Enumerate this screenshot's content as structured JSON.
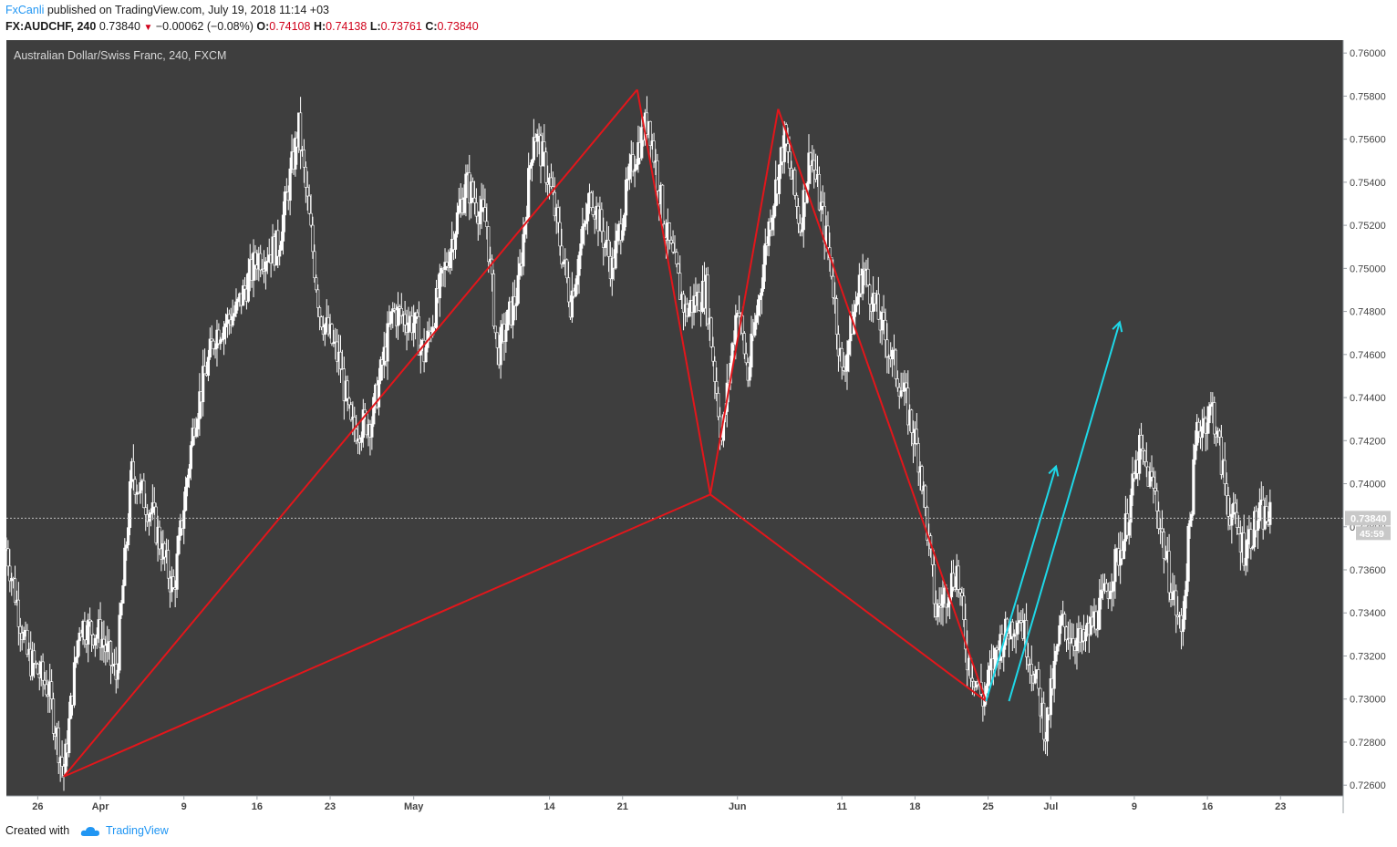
{
  "header": {
    "author": "FxCanli",
    "published": " published on TradingView.com, July 19, 2018 11:14 +03",
    "symbol": "FX:AUDCHF, 240",
    "last": "0.73840",
    "change": "−0.00062 (−0.08%)",
    "o_label": "O:",
    "o": "0.74108",
    "h_label": "H:",
    "h": "0.74138",
    "l_label": "L:",
    "l": "0.73761",
    "c_label": "C:",
    "c": "0.73840"
  },
  "footer": {
    "created_with": "Created with",
    "brand": "TradingView"
  },
  "colors": {
    "background": "#3e3e3e",
    "candle": "#ffffff",
    "pattern": "#e2161b",
    "arrows": "#1ed8e8",
    "price_tag": "#c8c8c8"
  },
  "chart_data": {
    "type": "candlestick",
    "title": "Australian Dollar/Swiss Franc, 240, FXCM",
    "y_ticks": [
      "0.76000",
      "0.75800",
      "0.75600",
      "0.75400",
      "0.75200",
      "0.75000",
      "0.74800",
      "0.74600",
      "0.74400",
      "0.74200",
      "0.74000",
      "0.73800",
      "0.73600",
      "0.73400",
      "0.73200",
      "0.73000",
      "0.72800",
      "0.72600"
    ],
    "ylim": [
      0.7255,
      0.7606
    ],
    "x_ticks": [
      {
        "label": "26",
        "day": 0
      },
      {
        "label": "Apr",
        "day": 6
      },
      {
        "label": "9",
        "day": 14
      },
      {
        "label": "16",
        "day": 21
      },
      {
        "label": "23",
        "day": 28
      },
      {
        "label": "May",
        "day": 36
      },
      {
        "label": "14",
        "day": 49
      },
      {
        "label": "21",
        "day": 56
      },
      {
        "label": "Jun",
        "day": 67
      },
      {
        "label": "11",
        "day": 77
      },
      {
        "label": "18",
        "day": 84
      },
      {
        "label": "25",
        "day": 91
      },
      {
        "label": "Jul",
        "day": 97
      },
      {
        "label": "9",
        "day": 105
      },
      {
        "label": "16",
        "day": 112
      },
      {
        "label": "23",
        "day": 119
      }
    ],
    "xlim_days": [
      -3,
      125
    ],
    "current_price": "0.73840",
    "current_price_value": 0.7384,
    "countdown": "45:59",
    "price_path": [
      [
        -3,
        0.737
      ],
      [
        -1,
        0.732
      ],
      [
        1,
        0.7305
      ],
      [
        2.5,
        0.7265
      ],
      [
        4,
        0.7335
      ],
      [
        6,
        0.733
      ],
      [
        7.5,
        0.731
      ],
      [
        9,
        0.7405
      ],
      [
        11,
        0.7385
      ],
      [
        13,
        0.735
      ],
      [
        15,
        0.743
      ],
      [
        17,
        0.747
      ],
      [
        19,
        0.748
      ],
      [
        21,
        0.7505
      ],
      [
        23,
        0.751
      ],
      [
        25,
        0.7565
      ],
      [
        27,
        0.748
      ],
      [
        29,
        0.7455
      ],
      [
        30,
        0.7425
      ],
      [
        32,
        0.743
      ],
      [
        34,
        0.748
      ],
      [
        36,
        0.7475
      ],
      [
        37,
        0.746
      ],
      [
        39,
        0.75
      ],
      [
        41,
        0.754
      ],
      [
        43,
        0.752
      ],
      [
        44,
        0.746
      ],
      [
        46,
        0.749
      ],
      [
        47.5,
        0.7565
      ],
      [
        49,
        0.754
      ],
      [
        51,
        0.7485
      ],
      [
        53,
        0.7535
      ],
      [
        55,
        0.75
      ],
      [
        57,
        0.755
      ],
      [
        58.5,
        0.757
      ],
      [
        60,
        0.752
      ],
      [
        62,
        0.748
      ],
      [
        64,
        0.749
      ],
      [
        65.5,
        0.742
      ],
      [
        67,
        0.7485
      ],
      [
        68,
        0.745
      ],
      [
        70,
        0.752
      ],
      [
        71.5,
        0.756
      ],
      [
        73,
        0.752
      ],
      [
        74,
        0.7555
      ],
      [
        76,
        0.75
      ],
      [
        77,
        0.745
      ],
      [
        79,
        0.75
      ],
      [
        81,
        0.747
      ],
      [
        83,
        0.744
      ],
      [
        84.5,
        0.741
      ],
      [
        86,
        0.734
      ],
      [
        88,
        0.736
      ],
      [
        89,
        0.732
      ],
      [
        90.5,
        0.73
      ],
      [
        92,
        0.7325
      ],
      [
        94,
        0.734
      ],
      [
        95.5,
        0.731
      ],
      [
        96.5,
        0.7285
      ],
      [
        98,
        0.7335
      ],
      [
        100,
        0.7325
      ],
      [
        102,
        0.7345
      ],
      [
        104,
        0.7375
      ],
      [
        105.5,
        0.7415
      ],
      [
        107,
        0.7395
      ],
      [
        108,
        0.7365
      ],
      [
        109.5,
        0.733
      ],
      [
        111,
        0.7425
      ],
      [
        112.5,
        0.7435
      ],
      [
        114,
        0.739
      ],
      [
        115.5,
        0.737
      ],
      [
        117,
        0.7385
      ],
      [
        118,
        0.7384
      ]
    ],
    "pattern_lines": [
      {
        "from": [
          2.5,
          0.7264
        ],
        "to": [
          57.4,
          0.7583
        ]
      },
      {
        "from": [
          57.4,
          0.7583
        ],
        "to": [
          64.4,
          0.7395
        ]
      },
      {
        "from": [
          64.4,
          0.7395
        ],
        "to": [
          70.9,
          0.7574
        ]
      },
      {
        "from": [
          70.9,
          0.7574
        ],
        "to": [
          90.8,
          0.7299
        ]
      },
      {
        "from": [
          90.8,
          0.7299
        ],
        "to": [
          64.4,
          0.7395
        ]
      },
      {
        "from": [
          64.4,
          0.7395
        ],
        "to": [
          2.5,
          0.7264
        ]
      }
    ],
    "forecast_arrows": [
      {
        "from": [
          90.8,
          0.7299
        ],
        "to": [
          97.5,
          0.7408
        ]
      },
      {
        "from": [
          93.0,
          0.7299
        ],
        "to": [
          103.6,
          0.7475
        ]
      }
    ]
  }
}
